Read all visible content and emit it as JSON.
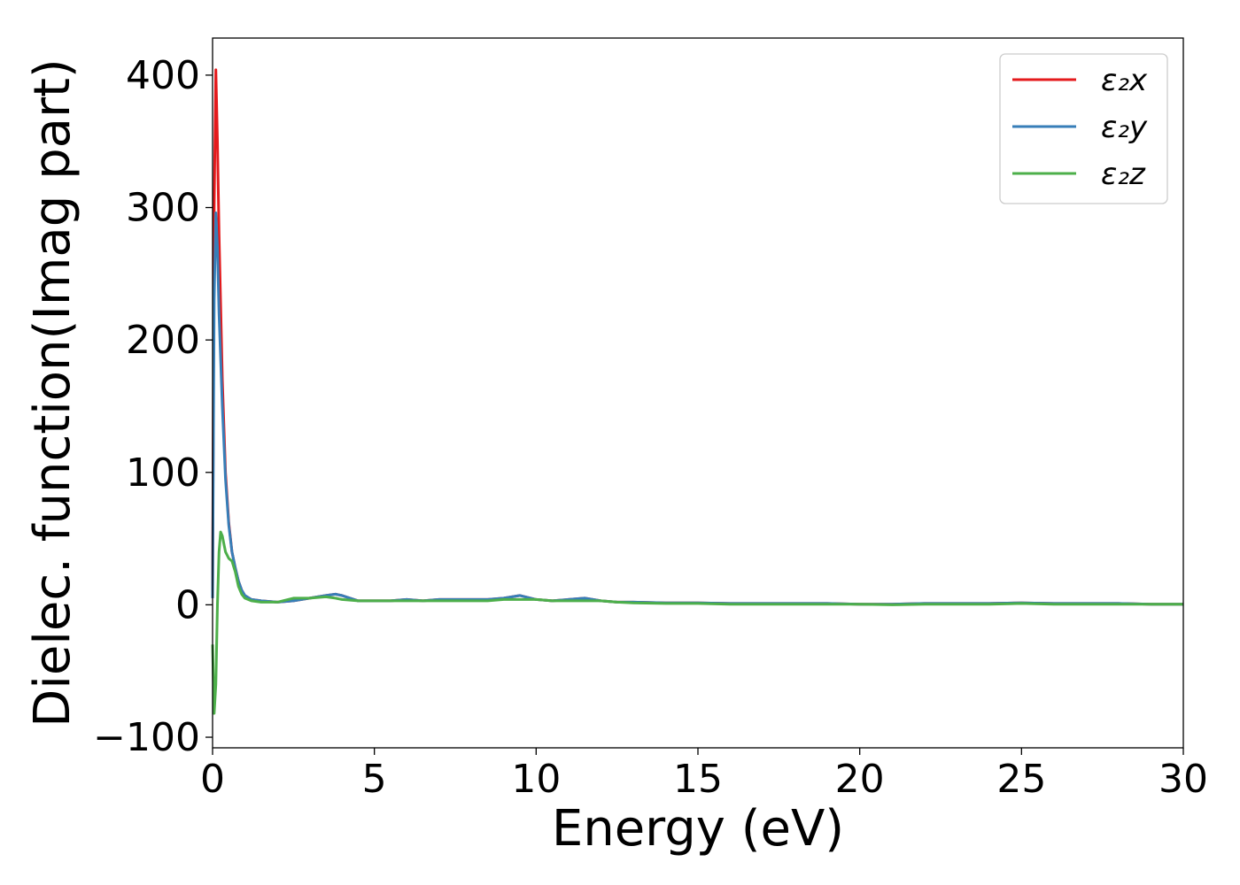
{
  "chart_data": {
    "type": "line",
    "title": "",
    "xlabel": "Energy (eV)",
    "ylabel": "Dielec. function(Imag part)",
    "xlim": [
      0,
      30
    ],
    "ylim": [
      -108,
      428
    ],
    "xticks": [
      0,
      5,
      10,
      15,
      20,
      25,
      30
    ],
    "yticks": [
      -100,
      0,
      100,
      200,
      300,
      400
    ],
    "xtick_labels": [
      "0",
      "5",
      "10",
      "15",
      "20",
      "25",
      "30"
    ],
    "ytick_labels": [
      "−100",
      "0",
      "100",
      "200",
      "300",
      "400"
    ],
    "grid": false,
    "legend_position": "top-right",
    "series": [
      {
        "name": "ε₂x",
        "color": "#e41a1c",
        "x": [
          0.0,
          0.05,
          0.1,
          0.15,
          0.2,
          0.3,
          0.4,
          0.5,
          0.6,
          0.7,
          0.8,
          0.9,
          1.0,
          1.2,
          1.5,
          2.0,
          2.5,
          3.0,
          3.5,
          3.8,
          4.0,
          4.5,
          5.0,
          5.5,
          6.0,
          6.5,
          7.0,
          7.5,
          8.0,
          8.5,
          9.0,
          9.5,
          10.0,
          10.5,
          11.0,
          11.5,
          12.0,
          12.5,
          13.0,
          14.0,
          15.0,
          16.0,
          17.0,
          18.0,
          19.0,
          20.0,
          21.0,
          22.0,
          23.0,
          24.0,
          25.0,
          26.0,
          27.0,
          28.0,
          29.0,
          30.0
        ],
        "values": [
          10,
          300,
          404,
          350,
          280,
          170,
          100,
          62,
          40,
          28,
          18,
          11,
          7,
          4,
          3,
          2,
          3,
          5,
          7,
          8,
          7,
          3,
          3,
          3,
          4,
          3,
          4,
          4,
          4,
          4,
          5,
          7,
          4,
          3,
          4,
          5,
          3,
          2,
          2,
          1.5,
          1.5,
          1,
          1,
          1,
          1,
          0.5,
          0.5,
          1,
          1,
          1,
          1.5,
          1,
          1,
          1,
          0.5,
          0.5
        ]
      },
      {
        "name": "ε₂y",
        "color": "#377eb8",
        "x": [
          0.0,
          0.05,
          0.1,
          0.15,
          0.2,
          0.3,
          0.4,
          0.5,
          0.6,
          0.7,
          0.8,
          0.9,
          1.0,
          1.2,
          1.5,
          2.0,
          2.5,
          3.0,
          3.5,
          3.8,
          4.0,
          4.5,
          5.0,
          5.5,
          6.0,
          6.5,
          7.0,
          7.5,
          8.0,
          8.5,
          9.0,
          9.5,
          10.0,
          10.5,
          11.0,
          11.5,
          12.0,
          12.5,
          13.0,
          14.0,
          15.0,
          16.0,
          17.0,
          18.0,
          19.0,
          20.0,
          21.0,
          22.0,
          23.0,
          24.0,
          25.0,
          26.0,
          27.0,
          28.0,
          29.0,
          30.0
        ],
        "values": [
          5,
          230,
          296,
          270,
          220,
          150,
          95,
          60,
          40,
          28,
          18,
          11,
          7,
          4,
          3,
          2,
          3,
          5,
          7,
          8,
          7,
          3,
          3,
          3,
          4,
          3,
          4,
          4,
          4,
          4,
          5,
          7,
          4,
          3,
          4,
          5,
          3,
          2,
          2,
          1.5,
          1.5,
          1,
          1,
          1,
          1,
          0.5,
          0.5,
          1,
          1,
          1,
          1.5,
          1,
          1,
          1,
          0.5,
          0.5
        ]
      },
      {
        "name": "ε₂z",
        "color": "#4daf4a",
        "x": [
          0.0,
          0.05,
          0.1,
          0.15,
          0.2,
          0.25,
          0.3,
          0.4,
          0.5,
          0.6,
          0.7,
          0.8,
          0.9,
          1.0,
          1.2,
          1.5,
          2.0,
          2.5,
          3.0,
          3.5,
          3.8,
          4.0,
          4.5,
          5.0,
          5.5,
          6.0,
          6.5,
          7.0,
          7.5,
          8.0,
          8.5,
          9.0,
          9.5,
          10.0,
          10.5,
          11.0,
          11.5,
          12.0,
          12.5,
          13.0,
          14.0,
          15.0,
          16.0,
          17.0,
          18.0,
          19.0,
          20.0,
          21.0,
          22.0,
          23.0,
          24.0,
          25.0,
          26.0,
          27.0,
          28.0,
          29.0,
          30.0
        ],
        "values": [
          -30,
          -82,
          -60,
          0,
          40,
          55,
          52,
          40,
          35,
          33,
          25,
          14,
          8,
          5,
          3,
          2,
          2,
          5,
          5,
          6,
          5,
          4,
          3,
          3,
          3,
          3,
          3,
          3,
          3,
          3,
          3,
          4,
          4,
          4,
          3,
          3,
          3,
          3,
          2,
          1.5,
          1,
          1,
          0.5,
          0.5,
          0.5,
          0.5,
          0.5,
          0,
          0.5,
          0.5,
          0.5,
          1,
          0.5,
          0.5,
          0.5,
          0.5,
          0.5
        ]
      }
    ]
  }
}
